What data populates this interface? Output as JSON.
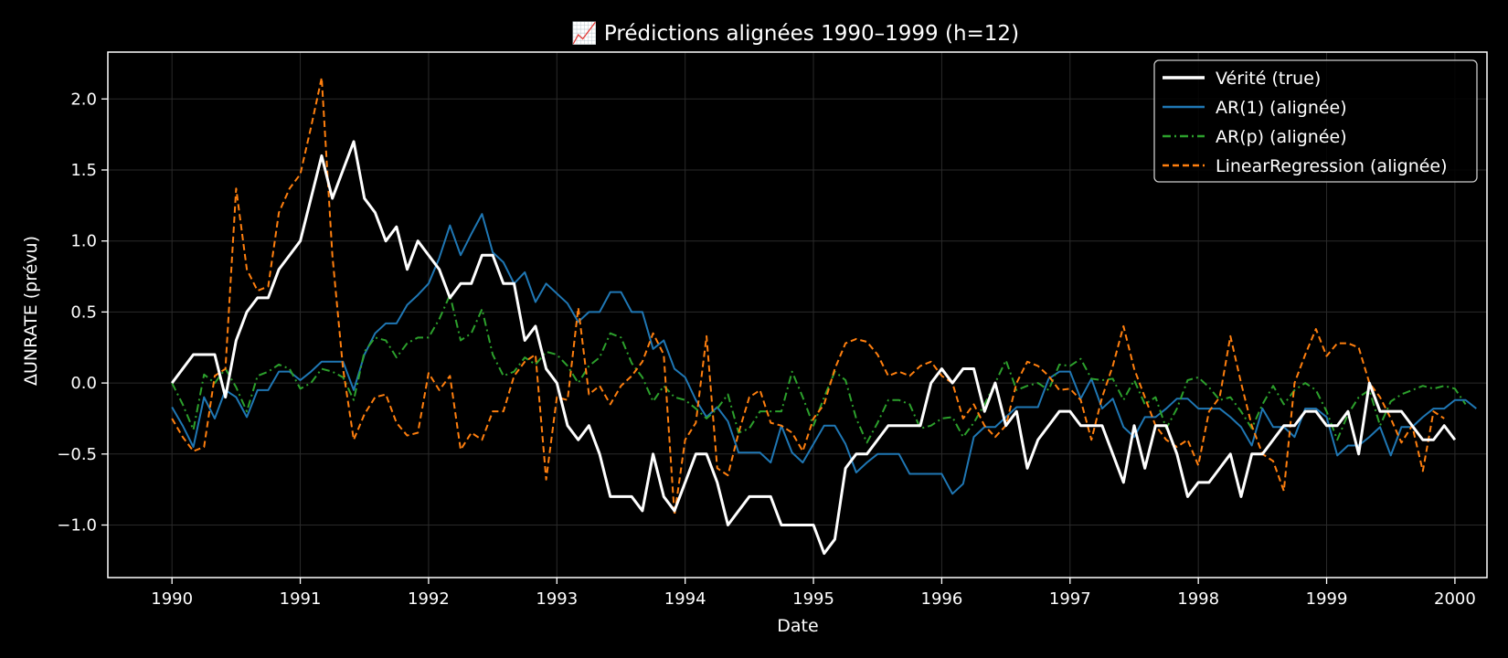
{
  "chart_data": {
    "type": "line",
    "title": "📈 Prédictions alignées 1990–1999 (h=12)",
    "xlabel": "Date",
    "ylabel": "ΔUNRATE (prévu)",
    "xlim": [
      1989.5,
      2000.25
    ],
    "ylim": [
      -1.37,
      2.33
    ],
    "x_ticks": [
      1990,
      1991,
      1992,
      1993,
      1994,
      1995,
      1996,
      1997,
      1998,
      1999,
      2000
    ],
    "x_tick_labels": [
      "1990",
      "1991",
      "1992",
      "1993",
      "1994",
      "1995",
      "1996",
      "1997",
      "1998",
      "1999",
      "2000"
    ],
    "y_ticks": [
      -1.0,
      -0.5,
      0.0,
      0.5,
      1.0,
      1.5,
      2.0
    ],
    "y_tick_labels": [
      "−1.0",
      "−0.5",
      "0.0",
      "0.5",
      "1.0",
      "1.5",
      "2.0"
    ],
    "grid": true,
    "legend_position": "top-right",
    "x_start": 1990,
    "x_step_months": 1,
    "colors": {
      "background": "#000000",
      "axes": "#ffffff",
      "grid": "#2a2a2a"
    },
    "series": [
      {
        "name": "Vérité (true)",
        "color": "#ffffff",
        "style": "solid",
        "width": 3,
        "values": [
          0.0,
          0.1,
          0.2,
          0.2,
          0.2,
          -0.1,
          0.3,
          0.5,
          0.6,
          0.6,
          0.8,
          0.9,
          1.0,
          1.3,
          1.6,
          1.3,
          1.5,
          1.7,
          1.3,
          1.2,
          1.0,
          1.1,
          0.8,
          1.0,
          0.9,
          0.8,
          0.6,
          0.7,
          0.7,
          0.9,
          0.9,
          0.7,
          0.7,
          0.3,
          0.4,
          0.1,
          0.0,
          -0.3,
          -0.4,
          -0.3,
          -0.5,
          -0.8,
          -0.8,
          -0.8,
          -0.9,
          -0.5,
          -0.8,
          -0.9,
          -0.7,
          -0.5,
          -0.5,
          -0.7,
          -1.0,
          -0.9,
          -0.8,
          -0.8,
          -0.8,
          -1.0,
          -1.0,
          -1.0,
          -1.0,
          -1.2,
          -1.1,
          -0.6,
          -0.5,
          -0.5,
          -0.4,
          -0.3,
          -0.3,
          -0.3,
          -0.3,
          0.0,
          0.1,
          0.0,
          0.1,
          0.1,
          -0.2,
          0.0,
          -0.3,
          -0.2,
          -0.6,
          -0.4,
          -0.3,
          -0.2,
          -0.2,
          -0.3,
          -0.3,
          -0.3,
          -0.5,
          -0.7,
          -0.3,
          -0.6,
          -0.3,
          -0.3,
          -0.5,
          -0.8,
          -0.7,
          -0.7,
          -0.6,
          -0.5,
          -0.8,
          -0.5,
          -0.5,
          -0.4,
          -0.3,
          -0.3,
          -0.2,
          -0.2,
          -0.3,
          -0.3,
          -0.2,
          -0.5,
          0.0,
          -0.2,
          -0.2,
          -0.2,
          -0.3,
          -0.4,
          -0.4,
          -0.3,
          -0.4
        ]
      },
      {
        "name": "AR(1) (alignée)",
        "color": "#1f77b4",
        "style": "solid",
        "width": 2,
        "values": [
          -0.17,
          -0.3,
          -0.45,
          -0.1,
          -0.25,
          -0.05,
          -0.1,
          -0.24,
          -0.05,
          -0.05,
          0.08,
          0.08,
          0.02,
          0.08,
          0.15,
          0.15,
          0.15,
          -0.05,
          0.2,
          0.35,
          0.42,
          0.42,
          0.55,
          0.62,
          0.7,
          0.88,
          1.11,
          0.9,
          1.05,
          1.19,
          0.92,
          0.85,
          0.7,
          0.78,
          0.57,
          0.7,
          0.63,
          0.56,
          0.43,
          0.5,
          0.5,
          0.64,
          0.64,
          0.5,
          0.5,
          0.24,
          0.3,
          0.1,
          0.04,
          -0.12,
          -0.24,
          -0.17,
          -0.27,
          -0.49,
          -0.49,
          -0.49,
          -0.56,
          -0.3,
          -0.49,
          -0.56,
          -0.43,
          -0.3,
          -0.3,
          -0.43,
          -0.63,
          -0.56,
          -0.5,
          -0.5,
          -0.5,
          -0.64,
          -0.64,
          -0.64,
          -0.64,
          -0.78,
          -0.71,
          -0.38,
          -0.31,
          -0.31,
          -0.24,
          -0.17,
          -0.17,
          -0.17,
          0.03,
          0.08,
          0.08,
          -0.11,
          0.03,
          -0.18,
          -0.11,
          -0.31,
          -0.38,
          -0.24,
          -0.24,
          -0.18,
          -0.11,
          -0.11,
          -0.18,
          -0.18,
          -0.18,
          -0.24,
          -0.31,
          -0.44,
          -0.18,
          -0.31,
          -0.31,
          -0.38,
          -0.18,
          -0.18,
          -0.24,
          -0.51,
          -0.44,
          -0.44,
          -0.38,
          -0.31,
          -0.51,
          -0.31,
          -0.31,
          -0.24,
          -0.18,
          -0.18,
          -0.12,
          -0.12,
          -0.18
        ]
      },
      {
        "name": "AR(p) (alignée)",
        "color": "#2ca02c",
        "style": "dashdot",
        "width": 2,
        "values": [
          0.0,
          -0.15,
          -0.33,
          0.06,
          0.0,
          0.1,
          -0.03,
          -0.2,
          0.05,
          0.08,
          0.13,
          0.1,
          -0.04,
          0.0,
          0.1,
          0.08,
          0.04,
          -0.12,
          0.22,
          0.32,
          0.3,
          0.18,
          0.28,
          0.32,
          0.32,
          0.45,
          0.62,
          0.3,
          0.35,
          0.52,
          0.2,
          0.05,
          0.08,
          0.18,
          0.13,
          0.22,
          0.2,
          0.12,
          0.0,
          0.12,
          0.18,
          0.35,
          0.32,
          0.14,
          0.04,
          -0.13,
          -0.02,
          -0.1,
          -0.12,
          -0.18,
          -0.25,
          -0.18,
          -0.08,
          -0.35,
          -0.32,
          -0.2,
          -0.2,
          -0.2,
          0.08,
          -0.1,
          -0.3,
          -0.1,
          0.08,
          0.02,
          -0.25,
          -0.42,
          -0.28,
          -0.12,
          -0.12,
          -0.15,
          -0.32,
          -0.3,
          -0.25,
          -0.24,
          -0.38,
          -0.28,
          -0.15,
          0.0,
          0.16,
          -0.05,
          -0.02,
          0.0,
          -0.05,
          0.13,
          0.12,
          0.17,
          0.03,
          0.02,
          0.03,
          -0.12,
          0.02,
          -0.15,
          -0.1,
          -0.32,
          -0.18,
          0.02,
          0.04,
          -0.03,
          -0.12,
          -0.1,
          -0.2,
          -0.32,
          -0.15,
          -0.02,
          -0.15,
          -0.05,
          0.0,
          -0.05,
          -0.2,
          -0.4,
          -0.22,
          -0.1,
          -0.05,
          -0.3,
          -0.13,
          -0.08,
          -0.05,
          -0.02,
          -0.04,
          -0.02,
          -0.04,
          -0.15
        ]
      },
      {
        "name": "LinearRegression (alignée)",
        "color": "#ff7f0e",
        "style": "dashed",
        "width": 2,
        "values": [
          -0.25,
          -0.38,
          -0.48,
          -0.45,
          0.05,
          0.1,
          1.37,
          0.8,
          0.65,
          0.68,
          1.2,
          1.37,
          1.47,
          1.8,
          2.15,
          0.9,
          0.1,
          -0.4,
          -0.22,
          -0.1,
          -0.08,
          -0.28,
          -0.37,
          -0.35,
          0.07,
          -0.05,
          0.05,
          -0.47,
          -0.35,
          -0.4,
          -0.2,
          -0.2,
          0.05,
          0.15,
          0.2,
          -0.68,
          -0.1,
          -0.12,
          0.53,
          -0.08,
          -0.02,
          -0.15,
          -0.02,
          0.05,
          0.15,
          0.35,
          0.2,
          -0.93,
          -0.4,
          -0.28,
          0.33,
          -0.6,
          -0.65,
          -0.35,
          -0.1,
          -0.05,
          -0.28,
          -0.3,
          -0.35,
          -0.48,
          -0.25,
          -0.15,
          0.1,
          0.28,
          0.31,
          0.29,
          0.2,
          0.05,
          0.08,
          0.05,
          0.12,
          0.15,
          0.05,
          0.0,
          -0.25,
          -0.15,
          -0.3,
          -0.38,
          -0.3,
          0.0,
          0.15,
          0.12,
          0.05,
          -0.05,
          -0.04,
          -0.12,
          -0.4,
          -0.1,
          0.12,
          0.4,
          0.1,
          -0.1,
          -0.3,
          -0.4,
          -0.45,
          -0.4,
          -0.58,
          -0.2,
          -0.1,
          0.33,
          0.0,
          -0.3,
          -0.5,
          -0.55,
          -0.76,
          0.0,
          0.2,
          0.38,
          0.19,
          0.28,
          0.28,
          0.25,
          0.0,
          -0.1,
          -0.25,
          -0.42,
          -0.3,
          -0.62,
          -0.2,
          -0.25
        ]
      }
    ]
  }
}
